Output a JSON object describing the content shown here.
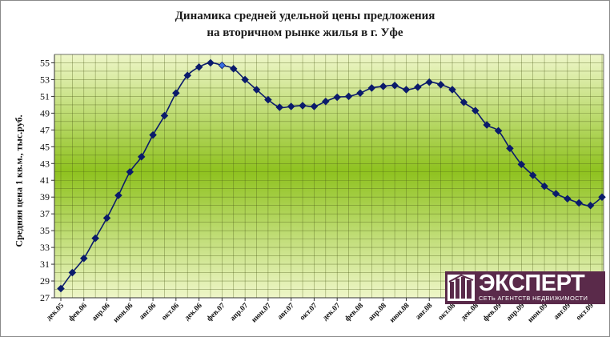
{
  "chart_data": {
    "type": "line",
    "title": [
      "Динамика средней удельной цены предложения",
      "на вторичном рынке жилья в г. Уфе"
    ],
    "xlabel": "",
    "ylabel": "Средняя цена 1 кв.м., тыс.руб.",
    "ylim": [
      27,
      56
    ],
    "yticks": [
      27,
      29,
      31,
      33,
      35,
      37,
      39,
      41,
      43,
      45,
      47,
      49,
      51,
      53,
      55
    ],
    "grid": true,
    "x_tick_labels": [
      "дек.05",
      "фев.06",
      "апр.06",
      "июн.06",
      "авг.06",
      "окт.06",
      "дек.06",
      "фев.07",
      "апр.07",
      "июн.07",
      "авг.07",
      "окт.07",
      "дек.07",
      "фев.08",
      "апр.08",
      "июн.08",
      "авг.08",
      "окт.08",
      "дек.08",
      "фев.09",
      "апр.09",
      "июн.09",
      "авг.09",
      "окт.09"
    ],
    "x": [
      "дек.05",
      "янв.06",
      "фев.06",
      "мар.06",
      "апр.06",
      "май.06",
      "июн.06",
      "июл.06",
      "авг.06",
      "сен.06",
      "окт.06",
      "ноя.06",
      "дек.06",
      "янв.07",
      "фев.07",
      "мар.07",
      "апр.07",
      "май.07",
      "июн.07",
      "июл.07",
      "авг.07",
      "сен.07",
      "окт.07",
      "ноя.07",
      "дек.07",
      "янв.08",
      "фев.08",
      "мар.08",
      "апр.08",
      "май.08",
      "июн.08",
      "июл.08",
      "авг.08",
      "сен.08",
      "окт.08",
      "ноя.08",
      "дек.08",
      "янв.09",
      "фев.09",
      "мар.09",
      "апр.09",
      "май.09",
      "июн.09",
      "июл.09",
      "авг.09",
      "сен.09",
      "окт.09",
      "ноя.09"
    ],
    "series": [
      {
        "values": [
          28.1,
          30.0,
          31.7,
          34.1,
          36.5,
          39.2,
          42.0,
          43.8,
          46.4,
          48.7,
          51.4,
          53.5,
          54.5,
          55.0,
          54.7,
          54.3,
          53.0,
          51.8,
          50.6,
          49.7,
          49.8,
          49.9,
          49.8,
          50.4,
          50.9,
          51.0,
          51.4,
          52.0,
          52.2,
          52.3,
          51.8,
          52.1,
          52.7,
          52.4,
          51.8,
          50.3,
          49.3,
          47.6,
          46.9,
          44.8,
          42.9,
          41.6,
          40.3,
          39.4,
          38.8,
          38.3,
          38.0,
          39.0
        ]
      }
    ],
    "highlight_point": "фев.07",
    "colors": {
      "line": "#0b1b6b",
      "marker": "#0b1b6b",
      "highlight_marker": "#3a6fe0",
      "plot_band_center": "#8fc21f",
      "plot_band_edge": "#eef6c8",
      "grid": "#4a5a18",
      "logo_bg": "#5a2a4a"
    }
  },
  "logo": {
    "word": "ЭКСПЕРТ",
    "subtitle": "СЕТЬ АГЕНТСТВ НЕДВИЖИМОСТИ"
  }
}
